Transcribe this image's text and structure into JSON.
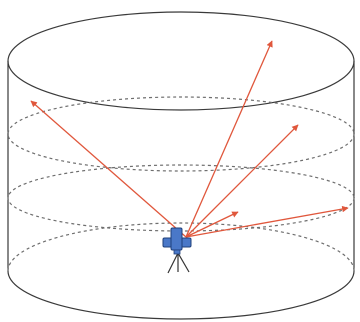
{
  "diagram": {
    "cylinder": {
      "wall_color": "#3a3a3a",
      "level_line_color": "#6e6e6e",
      "dashed_levels": 3
    },
    "scanner": {
      "body_color": "#4a78c8",
      "outline_color": "#1f3f7a",
      "tripod_color": "#333333",
      "tripod": "tripod-icon"
    },
    "rays": {
      "color": "#e0573c",
      "count": 5
    }
  }
}
